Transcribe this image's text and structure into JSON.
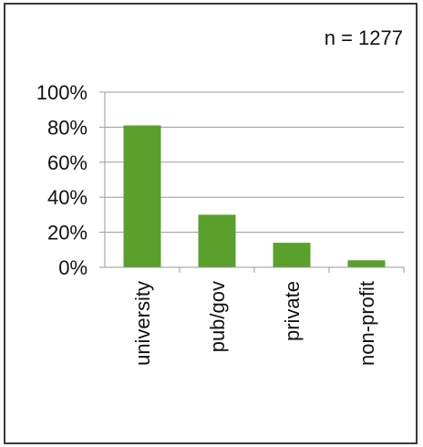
{
  "annotation": "n = 1277",
  "colors": {
    "bar": "#5aa02c",
    "grid": "#9a9a9a",
    "axis": "#9a9a9a"
  },
  "chart_data": {
    "type": "bar",
    "categories": [
      "university",
      "pub/gov",
      "private",
      "non-profit"
    ],
    "values": [
      81,
      30,
      14,
      4
    ],
    "ylim": [
      0,
      100
    ],
    "yticks": [
      0,
      20,
      40,
      60,
      80,
      100
    ],
    "ytick_labels": [
      "0%",
      "20%",
      "40%",
      "60%",
      "80%",
      "100%"
    ],
    "grid": true,
    "title": "",
    "xlabel": "",
    "ylabel": ""
  }
}
